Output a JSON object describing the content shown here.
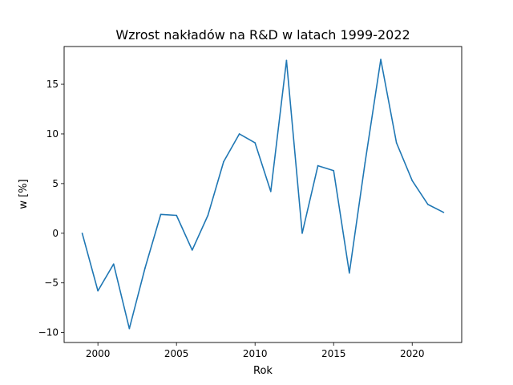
{
  "chart_data": {
    "type": "line",
    "title": "Wzrost nakładów na R&D w latach 1999-2022",
    "xlabel": "Rok",
    "ylabel": "w [%]",
    "xlim": [
      1997.85,
      2023.15
    ],
    "ylim": [
      -11.0,
      18.8
    ],
    "xticks": [
      2000,
      2005,
      2010,
      2015,
      2020
    ],
    "yticks": [
      -10,
      -5,
      0,
      5,
      10,
      15
    ],
    "grid": false,
    "line_color": "#1f77b4",
    "series": [
      {
        "x": [
          1999,
          2000,
          2001,
          2002,
          2003,
          2004,
          2005,
          2006,
          2007,
          2008,
          2009,
          2010,
          2011,
          2012,
          2013,
          2014,
          2015,
          2016,
          2017,
          2018,
          2019,
          2020,
          2021,
          2022
        ],
        "values": [
          0.0,
          -5.8,
          -3.1,
          -9.6,
          -3.5,
          1.9,
          1.8,
          -1.7,
          1.8,
          7.2,
          10.0,
          9.1,
          4.2,
          17.4,
          0.0,
          6.8,
          6.3,
          -4.0,
          7.1,
          17.5,
          9.1,
          5.3,
          2.9,
          2.1
        ]
      }
    ]
  }
}
